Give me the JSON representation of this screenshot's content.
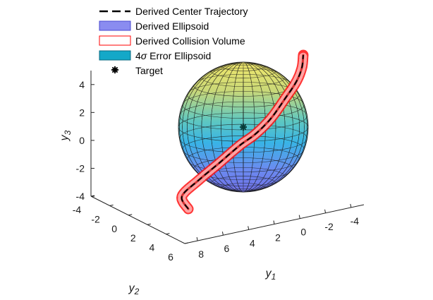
{
  "chart_data": {
    "type": "3d-surface",
    "legend": {
      "position": "top",
      "entries": [
        {
          "label": "Derived Center Trajectory",
          "style": "dashed-line",
          "color": "#000000"
        },
        {
          "label": "Derived Ellipsoid",
          "style": "patch",
          "color": "#8a8cf0"
        },
        {
          "label": "Derived Collision Volume",
          "style": "outline-patch",
          "color": "#ff0000"
        },
        {
          "label_prefix": "4",
          "label_sigma": "σ",
          "label_suffix": " Error Ellipsoid",
          "style": "patch",
          "color": "#14a8c8"
        },
        {
          "label": "Target",
          "style": "marker",
          "marker": "*",
          "color": "#000000"
        }
      ]
    },
    "axes": {
      "y1": {
        "label_main": "y",
        "label_sub": "1",
        "range": [
          -5,
          9
        ],
        "ticks": [
          {
            "v": 8,
            "t": "8"
          },
          {
            "v": 6,
            "t": "6"
          },
          {
            "v": 4,
            "t": "4"
          },
          {
            "v": 2,
            "t": "2"
          },
          {
            "v": 0,
            "t": "0"
          },
          {
            "v": -2,
            "t": "-2"
          },
          {
            "v": -4,
            "t": "-4"
          }
        ]
      },
      "y2": {
        "label_main": "y",
        "label_sub": "2",
        "range": [
          -4,
          6
        ],
        "ticks": [
          {
            "v": -4,
            "t": "-4"
          },
          {
            "v": -2,
            "t": "-2"
          },
          {
            "v": 0,
            "t": "0"
          },
          {
            "v": 2,
            "t": "2"
          },
          {
            "v": 4,
            "t": "4"
          },
          {
            "v": 6,
            "t": "6"
          }
        ]
      },
      "y3": {
        "label_main": "y",
        "label_sub": "3",
        "range": [
          -4,
          5
        ],
        "ticks": [
          {
            "v": 4,
            "t": "4"
          },
          {
            "v": 2,
            "t": "2"
          },
          {
            "v": 0,
            "t": "0"
          },
          {
            "v": -2,
            "t": "-2"
          },
          {
            "v": -4,
            "t": "-4"
          }
        ]
      }
    },
    "ellipsoid": {
      "center": [
        0,
        0,
        0
      ],
      "radius": 4,
      "colormap": "parula"
    },
    "target": [
      0,
      0,
      0
    ],
    "trajectory": {
      "start": [
        7.5,
        3.5,
        -4.5
      ],
      "end": [
        -4.5,
        -3.5,
        4.8
      ],
      "tube_radius": 0.4
    }
  }
}
